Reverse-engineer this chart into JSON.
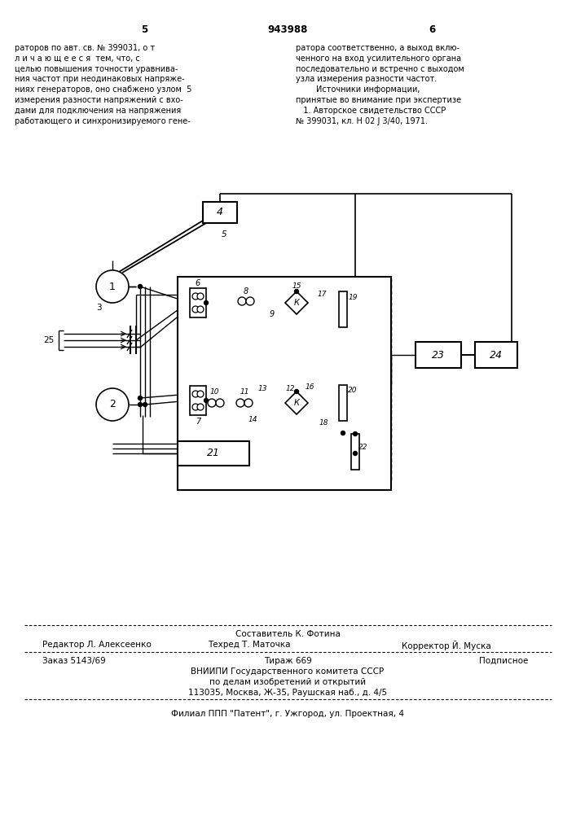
{
  "page_num_left": "5",
  "page_num_center": "943988",
  "page_num_right": "6",
  "text_left_lines": [
    "раторов по авт. св. № 399031, о т",
    "л и ч а ю щ е е с я  тем, что, с",
    "целью повышения точности уравнива-",
    "ния частот при неодинаковых напряже-",
    "ниях генераторов, оно снабжено узлом  5",
    "измерения разности напряжений с вхо-",
    "дами для подключения на напряжения",
    "работающего и синхронизируемого гене-"
  ],
  "text_right_lines": [
    "ратора соответственно, а выход вклю-",
    "ченного на вход усилительного органа",
    "последовательно и встречно с выходом",
    "узла измерения разности частот.",
    "        Источники информации,",
    "принятые во внимание при экспертизе",
    "   1. Авторское свидетельство СССР",
    "№ 399031, кл. Н 02 J 3/40, 1971."
  ],
  "footer_composer": "Составитель К. Фотина",
  "footer_editor": "Редактор Л. Алексеенко",
  "footer_techred": "Техред Т. Маточка",
  "footer_corrector": "Корректор Й. Муска",
  "footer_order": "Заказ 5143/69",
  "footer_tirazh": "Тираж 669",
  "footer_podpisnoe": "Подписное",
  "footer_vniiipi": "ВНИИПИ Государственного комитета СССР",
  "footer_po": "по делам изобретений и открытий",
  "footer_address": "113035, Москва, Ж-35, Раушская наб., д. 4/5",
  "footer_filial": "Филиал ППП \"Патент\", г. Ужгород, ул. Проектная, 4",
  "bg_color": "#ffffff"
}
